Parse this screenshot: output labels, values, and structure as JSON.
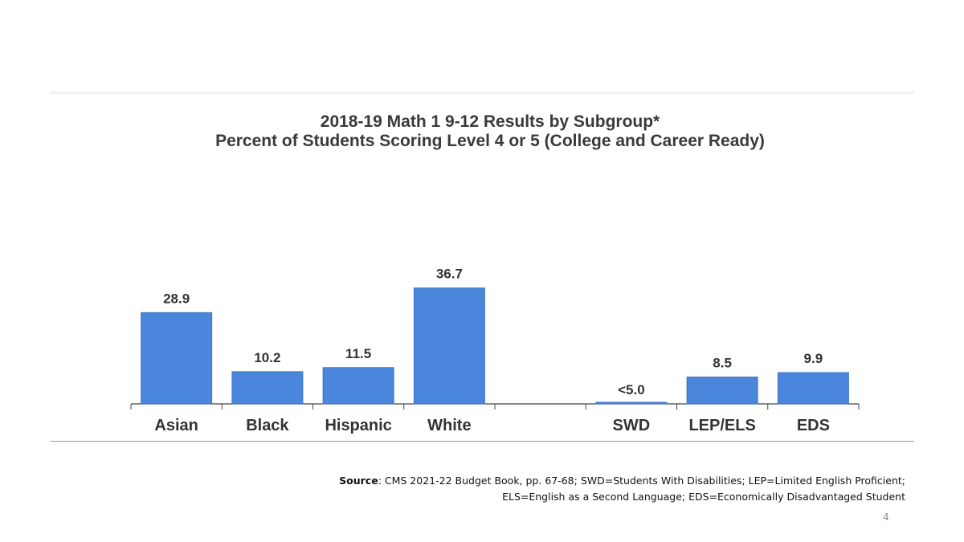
{
  "slide": {
    "page_number": "4",
    "source_label": "Source",
    "source_line1": ": CMS 2021-22 Budget Book, pp. 67-68; SWD=Students With Disabilities; LEP=Limited English Proficient;",
    "source_line2": "ELS=English as a Second Language; EDS=Economically Disadvantaged Student"
  },
  "chart_data": {
    "type": "bar",
    "title": "2018-19 Math 1 9-12 Results by Subgroup*",
    "subtitle": "Percent of Students Scoring Level 4 or 5 (College and Career Ready)",
    "categories": [
      "Asian",
      "Black",
      "Hispanic",
      "White",
      "",
      "SWD",
      "LEP/ELS",
      "EDS"
    ],
    "values": [
      28.9,
      10.2,
      11.5,
      36.7,
      null,
      0.5,
      8.5,
      9.9
    ],
    "data_labels": [
      "28.9",
      "10.2",
      "11.5",
      "36.7",
      "",
      "<5.0",
      "8.5",
      "9.9"
    ],
    "ylim": [
      0,
      40
    ],
    "grid": false,
    "legend": "none",
    "colors": {
      "bar": "#4a86dc",
      "bar_stroke": "#3f74c4",
      "axis": "#444444",
      "text": "#333333"
    }
  }
}
